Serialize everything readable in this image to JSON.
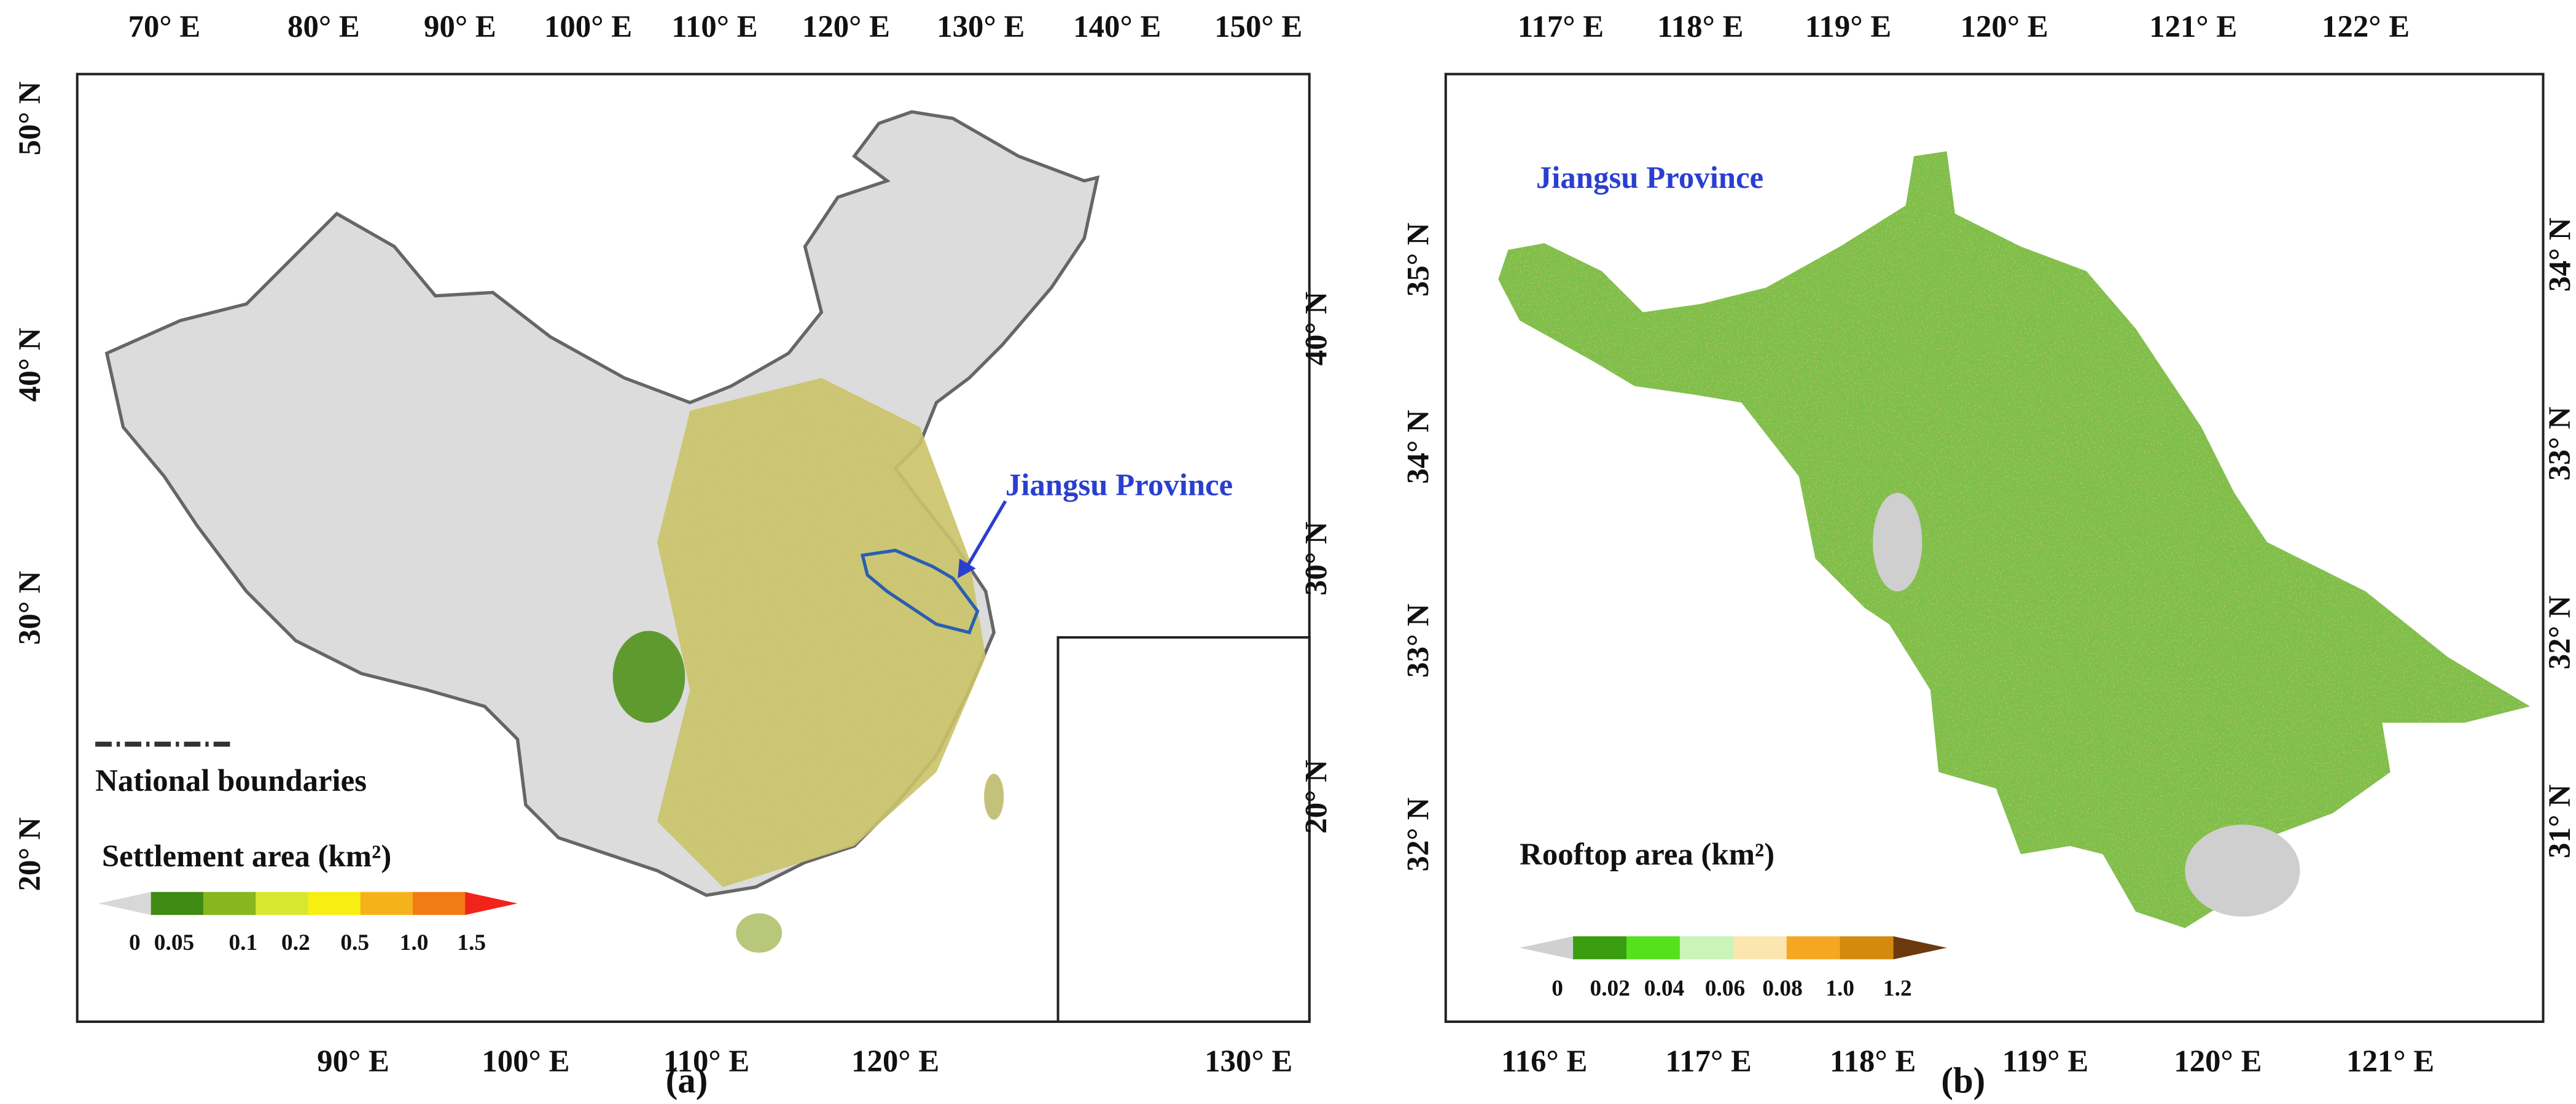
{
  "panels": [
    {
      "caption": "(a)",
      "annotation": "Jiangsu Province",
      "top_ticks": [
        "70° E",
        "80° E",
        "90° E",
        "100° E",
        "110° E",
        "120° E",
        "130° E",
        "140° E",
        "150° E"
      ],
      "bottom_ticks": [
        "90° E",
        "100° E",
        "110° E",
        "120° E",
        "130° E"
      ],
      "left_ticks": [
        "50° N",
        "40° N",
        "30° N",
        "20° N"
      ],
      "right_ticks": [
        "40° N",
        "30° N",
        "20° N"
      ],
      "boundary_legend": "National boundaries",
      "legend": {
        "title": "Settlement area (km²)",
        "labels": [
          "0",
          "0.05",
          "0.1",
          "0.2",
          "0.5",
          "1.0",
          "1.5"
        ]
      }
    },
    {
      "caption": "(b)",
      "annotation": "Jiangsu Province",
      "top_ticks": [
        "117° E",
        "118° E",
        "119° E",
        "120° E",
        "121° E",
        "122° E"
      ],
      "bottom_ticks": [
        "116° E",
        "117° E",
        "118° E",
        "119° E",
        "120° E",
        "121° E"
      ],
      "left_ticks": [
        "35° N",
        "34° N",
        "33° N",
        "32° N"
      ],
      "right_ticks": [
        "34° N",
        "33° N",
        "32° N",
        "31° N"
      ],
      "legend": {
        "title": "Rooftop area (km²)",
        "labels": [
          "0",
          "0.02",
          "0.04",
          "0.06",
          "0.08",
          "1.0",
          "1.2"
        ]
      }
    }
  ]
}
